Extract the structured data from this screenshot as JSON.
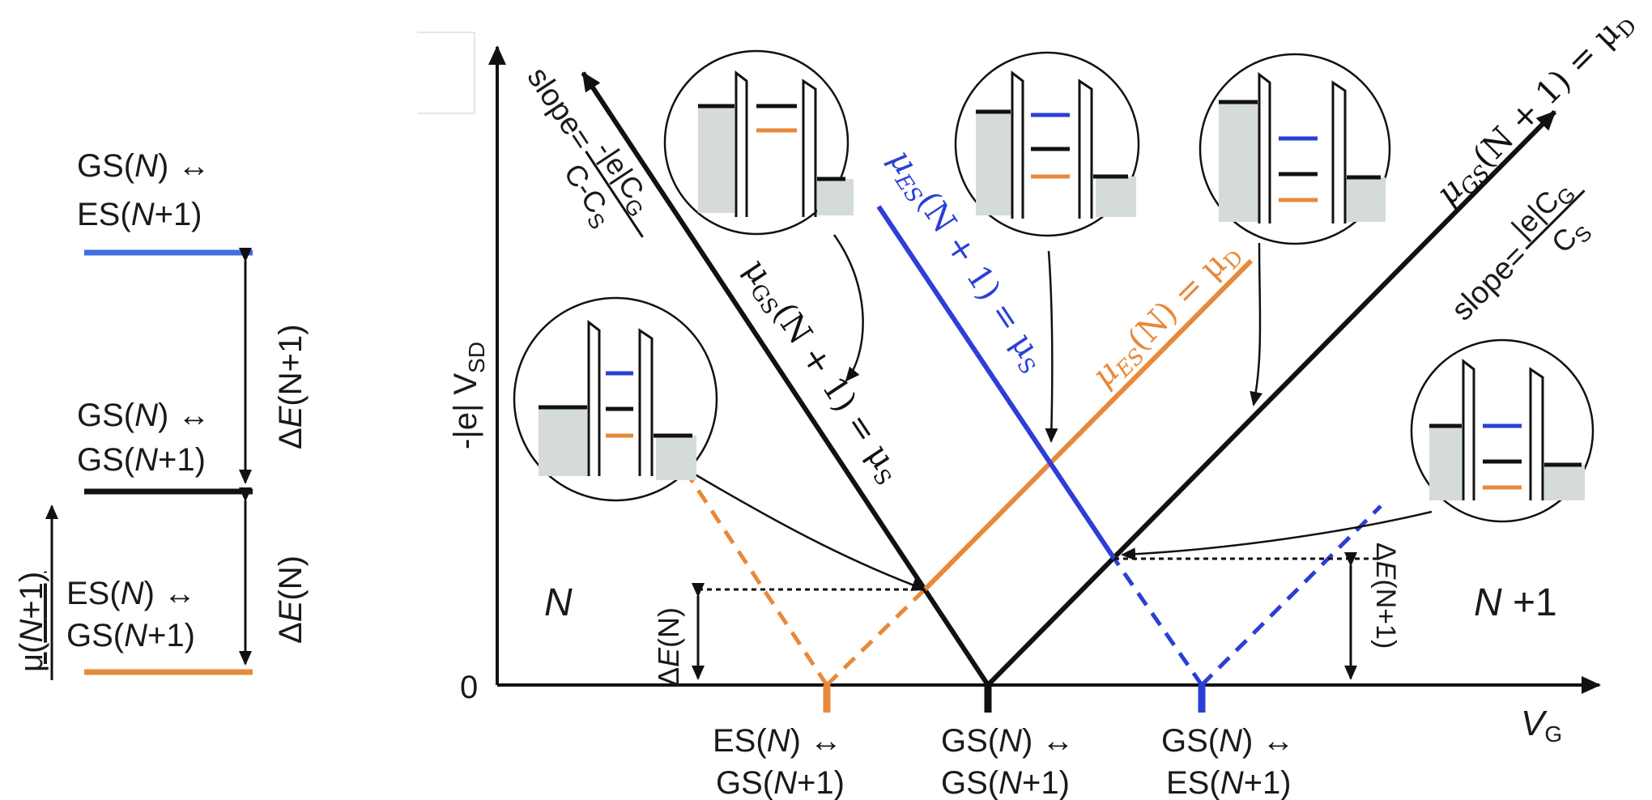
{
  "colors": {
    "black": "#111111",
    "orange": "#e8893a",
    "blue": "#2b3fd6",
    "left_blue": "#3f6fe0",
    "gray_fill": "#d5dada"
  },
  "left_panel": {
    "levels": [
      {
        "l1": "GS(",
        "i1": "N",
        "m1": ") ↔",
        "l2": "ES(",
        "i2": "N",
        "m2": "+1)"
      },
      {
        "l1": "GS(",
        "i1": "N",
        "m1": ") ↔",
        "l2": "GS(",
        "i2": "N",
        "m2": "+1)"
      },
      {
        "l1": "ES(",
        "i1": "N",
        "m1": ") ↔",
        "l2": "GS(",
        "i2": "N",
        "m2": "+1)"
      }
    ],
    "mu_axis": {
      "pre": "μ(",
      "it": "N",
      "post": "+1)"
    },
    "gap_upper": {
      "pre": "Δ",
      "it": "E",
      "post": "(N+1)"
    },
    "gap_lower": {
      "pre": "Δ",
      "it": "E",
      "post": "(N)"
    }
  },
  "main_plot": {
    "y_axis_label": "-|e| V",
    "y_axis_sub": "SD",
    "x_axis_label": "V",
    "x_axis_sub": "G",
    "zero_label": "0",
    "region_left": "N",
    "region_right_it": "N",
    "region_right_rest": " +1",
    "bottom_labels": [
      {
        "l1": "ES(",
        "i1": "N",
        "m1": ") ↔",
        "l2": "GS(",
        "i2": "N",
        "m2": "+1)"
      },
      {
        "l1": "GS(",
        "i1": "N",
        "m1": ") ↔",
        "l2": "GS(",
        "i2": "N",
        "m2": "+1)"
      },
      {
        "l1": "GS(",
        "i1": "N",
        "m1": ") ↔",
        "l2": "ES(",
        "i2": "N",
        "m2": "+1)"
      }
    ],
    "gap_left": {
      "pre": "Δ",
      "it": "E",
      "post": "(N)"
    },
    "gap_right": {
      "pre": "Δ",
      "it": "E",
      "post": "(N+1)"
    },
    "slope_left": {
      "prefix": "slope=",
      "num": "-|e|C",
      "num_sub": "G",
      "den": "C-C",
      "den_sub": "S"
    },
    "slope_right": {
      "prefix": "slope=",
      "num": "|e|C",
      "num_sub": "G",
      "den": "C",
      "den_sub": "S"
    },
    "line_labels": {
      "gs_n1_s": {
        "mu": "μ",
        "sub": "GS",
        "rest": "(N + 1) = μ",
        "end_sub": "S"
      },
      "es_n1_s": {
        "mu": "μ",
        "sub": "ES",
        "rest": "(N + 1) = μ",
        "end_sub": "S"
      },
      "es_n_d": {
        "mu": "μ",
        "sub": "ES",
        "rest": "(N) = μ",
        "end_sub": "D"
      },
      "gs_n1_d": {
        "mu": "μ",
        "sub": "GS",
        "rest": "(N + 1) = μ",
        "end_sub": "D"
      }
    }
  }
}
